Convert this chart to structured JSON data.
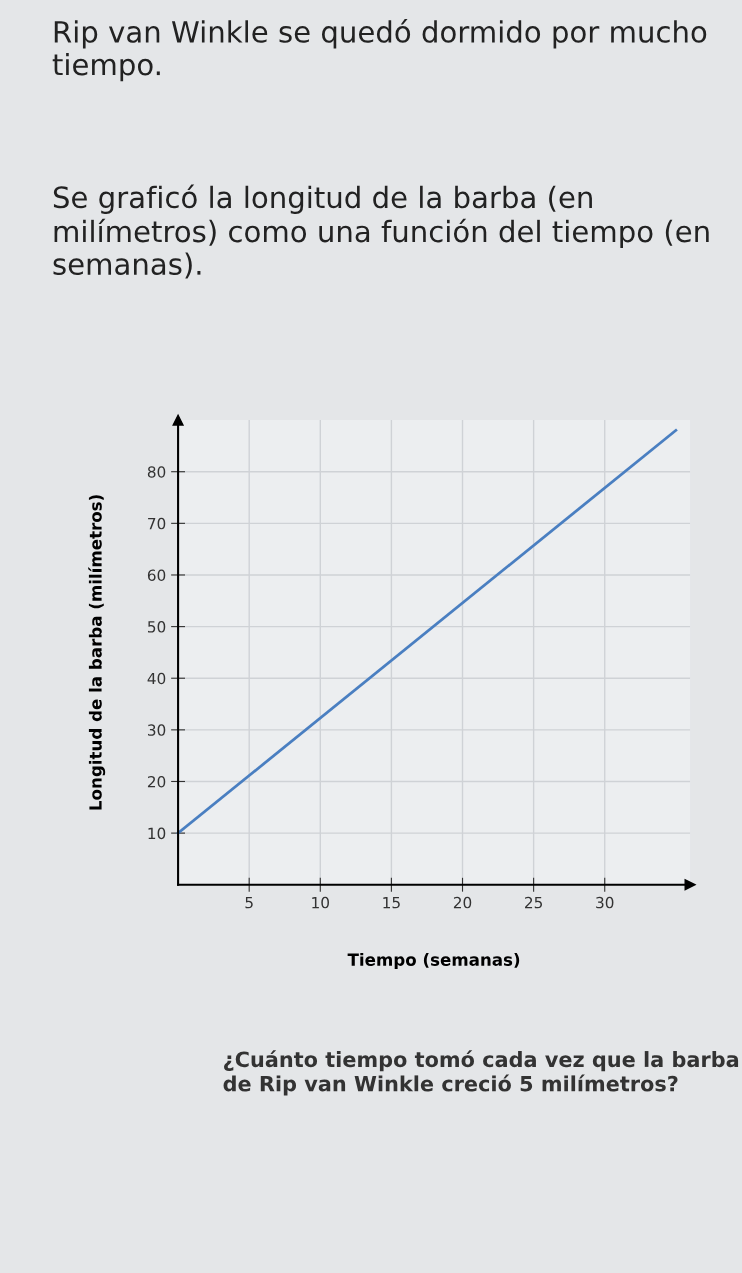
{
  "chart_data": {
    "type": "line",
    "title": "Rip van Winkle se quedó dormido por mucho tiempo.",
    "subtitle": "Se graficó la longitud de la barba (en milímetros) como una función del tiempo (en semanas).",
    "xlabel": "Tiempo (semanas)",
    "ylabel": "Longitud de la barba (milímetros)",
    "series": [
      {
        "color": "#4a7fc1",
        "x": [
          0,
          35
        ],
        "values": [
          10,
          88
        ]
      }
    ],
    "xlim": [
      0,
      36
    ],
    "ylim": [
      0,
      90
    ],
    "xticks": [
      5,
      10,
      15,
      20,
      25,
      30
    ],
    "yticks": [
      10,
      20,
      30,
      40,
      50,
      60,
      70,
      80
    ],
    "grid": true,
    "annotations": [
      "¿Cuánto tiempo tomó cada vez que la barba de Rip van Winkle creció 5 milímetros?"
    ]
  }
}
